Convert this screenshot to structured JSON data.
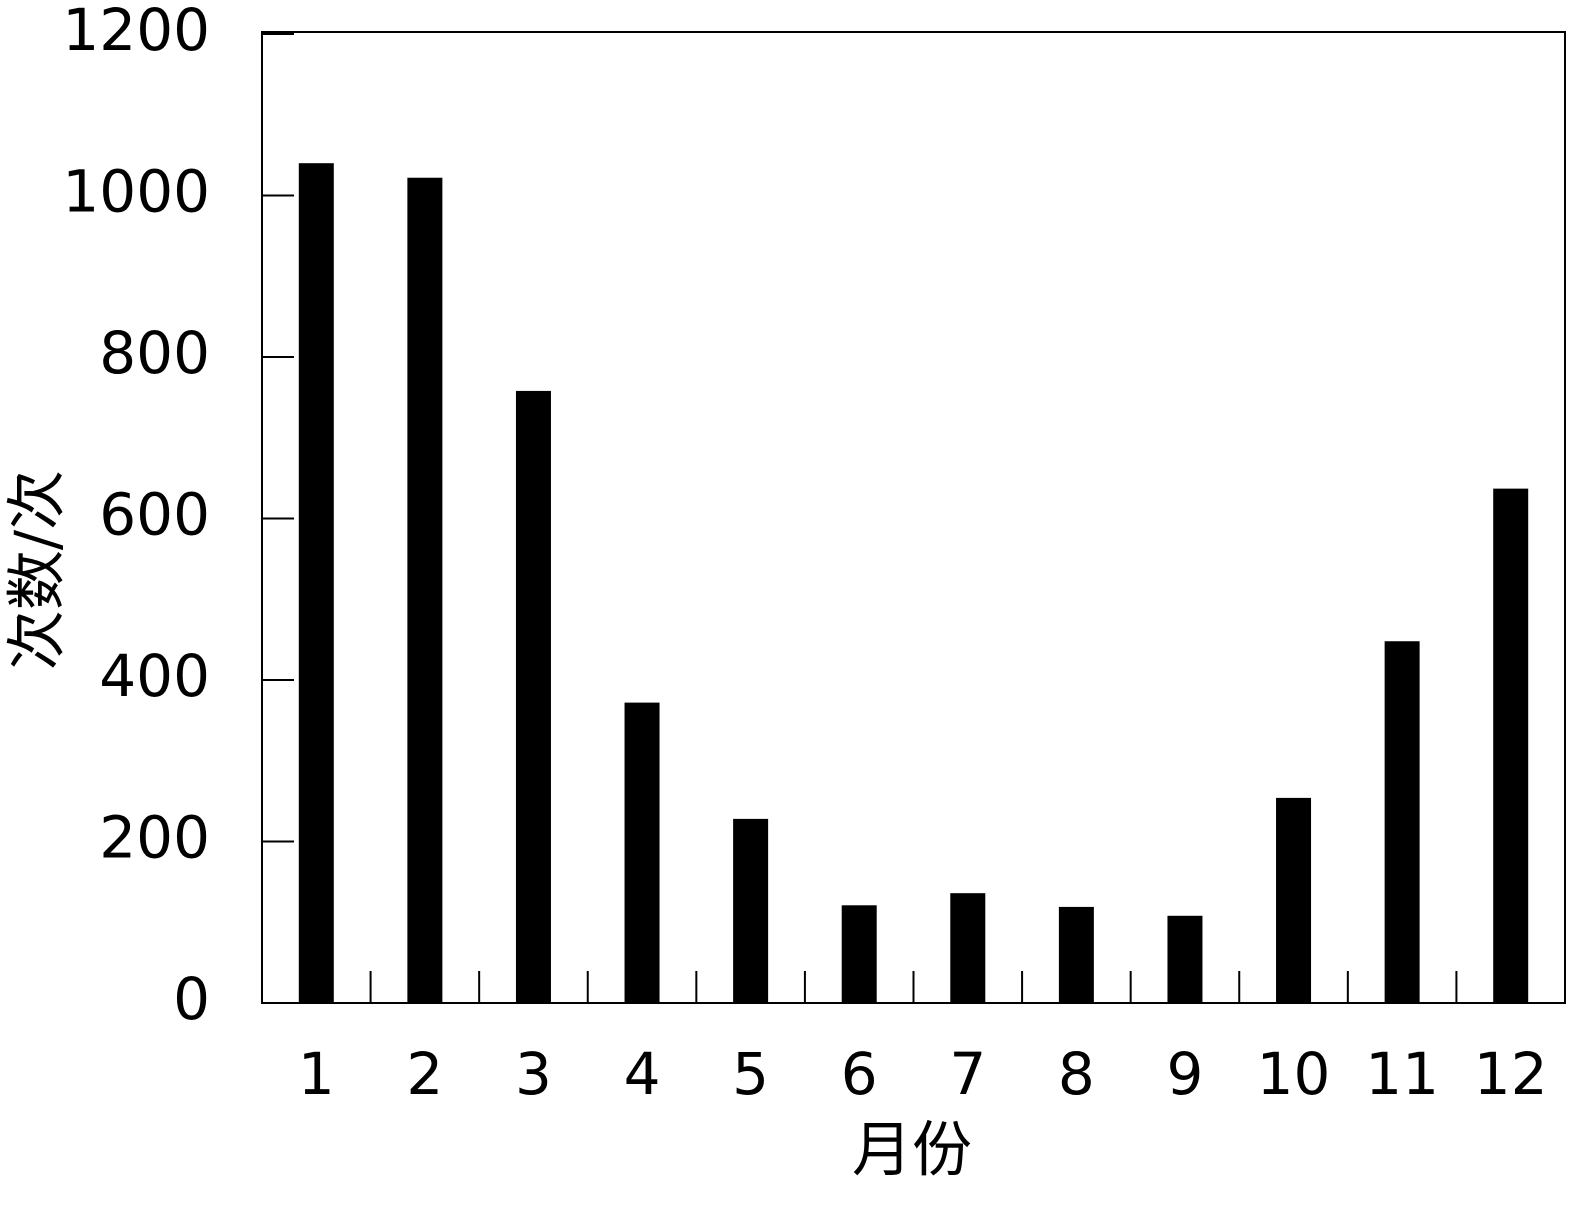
{
  "chart_data": {
    "type": "bar",
    "x_label": "月份",
    "y_label": "次数/次",
    "categories": [
      "1",
      "2",
      "3",
      "4",
      "5",
      "6",
      "7",
      "8",
      "9",
      "10",
      "11",
      "12"
    ],
    "values": [
      1040,
      1022,
      758,
      372,
      228,
      121,
      136,
      119,
      108,
      254,
      448,
      637
    ],
    "color": "#000000",
    "ylim": [
      0,
      1200
    ],
    "yticks": [
      0,
      200,
      400,
      600,
      800,
      1000,
      1200
    ],
    "grid": false
  }
}
